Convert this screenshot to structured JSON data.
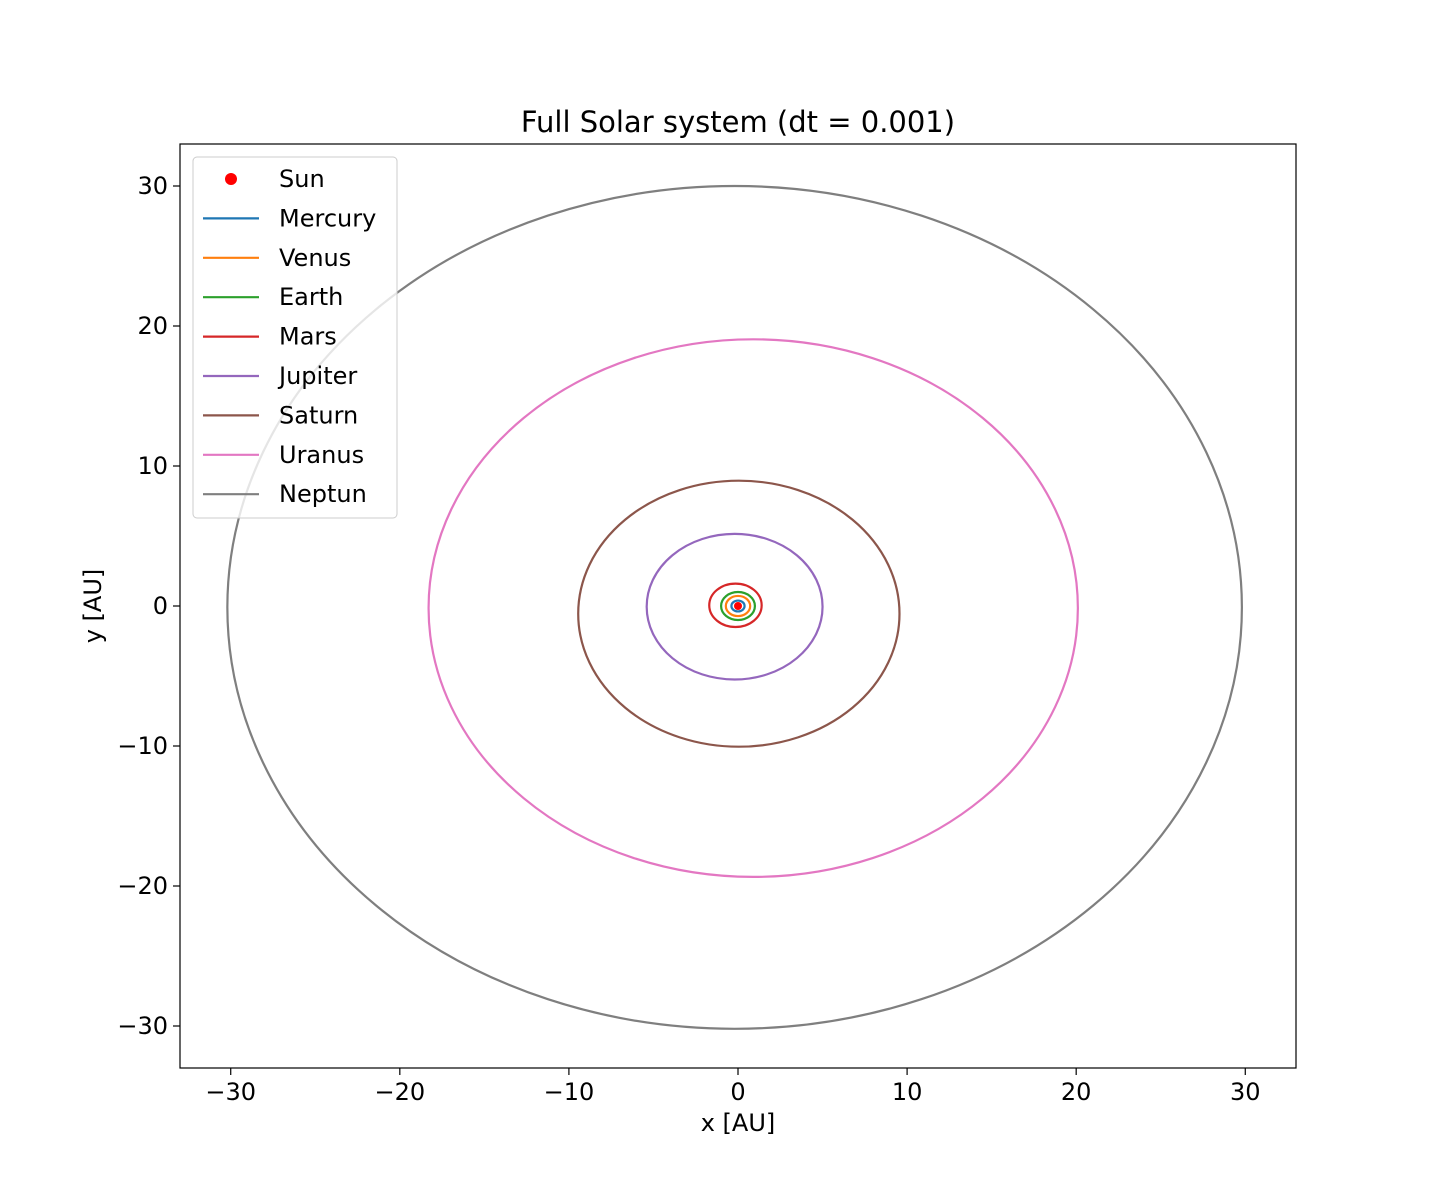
{
  "chart_data": {
    "type": "line",
    "title": "Full Solar system (dt = 0.001)",
    "xlabel": "x [AU]",
    "ylabel": "y [AU]",
    "xlim": [
      -33,
      33
    ],
    "ylim": [
      -33,
      33
    ],
    "xticks": [
      -30,
      -20,
      -10,
      0,
      10,
      20,
      30
    ],
    "yticks": [
      -30,
      -20,
      -10,
      0,
      10,
      20,
      30
    ],
    "xtick_labels": [
      "−30",
      "−20",
      "−10",
      "0",
      "10",
      "20",
      "30"
    ],
    "ytick_labels": [
      "−30",
      "−20",
      "−10",
      "0",
      "10",
      "20",
      "30"
    ],
    "grid": false,
    "legend_position": "upper-left",
    "sun": {
      "name": "Sun",
      "x": 0.0,
      "y": 0.0,
      "color": "#ff0000"
    },
    "series": [
      {
        "name": "Mercury",
        "color": "#1f77b4",
        "center": [
          0.0,
          0.0
        ],
        "rx": 0.39,
        "ry": 0.39
      },
      {
        "name": "Venus",
        "color": "#ff7f0e",
        "center": [
          0.0,
          0.0
        ],
        "rx": 0.72,
        "ry": 0.72
      },
      {
        "name": "Earth",
        "color": "#2ca02c",
        "center": [
          0.0,
          0.0
        ],
        "rx": 1.0,
        "ry": 1.0
      },
      {
        "name": "Mars",
        "color": "#d62728",
        "center": [
          -0.15,
          0.05
        ],
        "rx": 1.55,
        "ry": 1.55
      },
      {
        "name": "Jupiter",
        "color": "#9467bd",
        "center": [
          -0.2,
          -0.05
        ],
        "rx": 5.2,
        "ry": 5.2
      },
      {
        "name": "Saturn",
        "color": "#8c564b",
        "center": [
          0.05,
          -0.55
        ],
        "rx": 9.5,
        "ry": 9.5
      },
      {
        "name": "Uranus",
        "color": "#e377c2",
        "center": [
          0.9,
          -0.15
        ],
        "rx": 19.2,
        "ry": 19.2
      },
      {
        "name": "Neptun",
        "color": "#7f7f7f",
        "center": [
          -0.2,
          -0.1
        ],
        "rx": 30.0,
        "ry": 30.1
      }
    ]
  }
}
